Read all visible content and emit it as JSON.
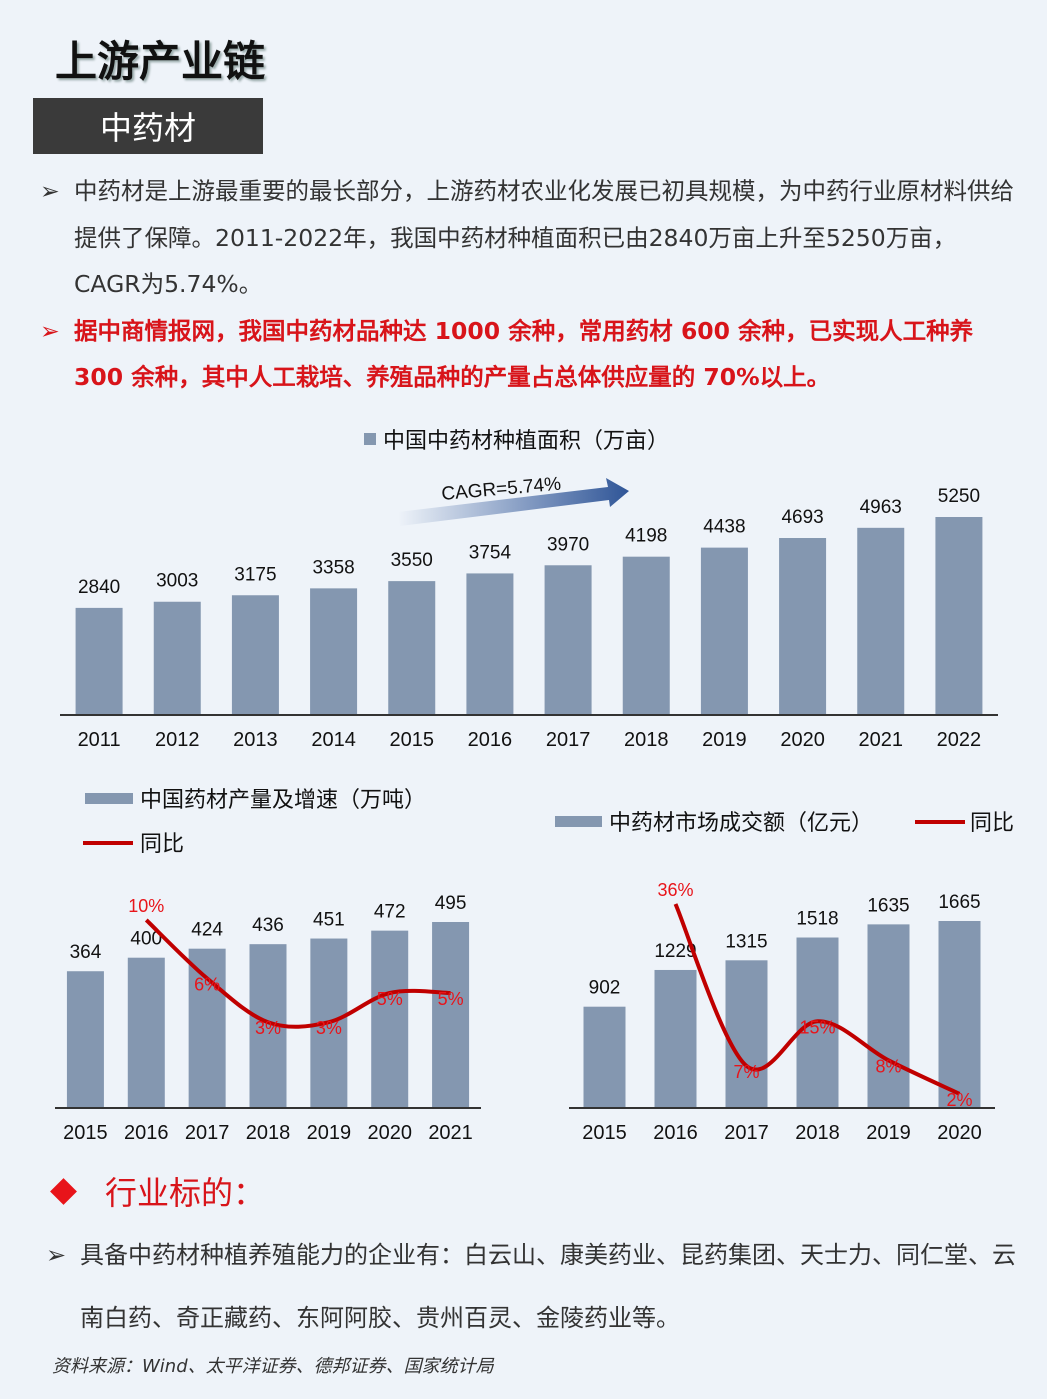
{
  "header": {
    "title": "上游产业链",
    "tag": "中药材"
  },
  "bullets": [
    {
      "text": "中药材是上游最重要的最长部分，上游药材农业化发展已初具规模，为中药行业原材料供给提供了保障。2011-2022年，我国中药材种植面积已由2840万亩上升至5250万亩，CAGR为5.74%。"
    },
    {
      "text": "据中商情报网，我国中药材品种达 1000 余种，常用药材 600 余种，已实现人工种养 300 余种，其中人工栽培、养殖品种的产量占总体供应量的 70%以上。"
    }
  ],
  "bullet_mark": "➢",
  "chart_data": [
    {
      "type": "bar",
      "legend": [
        "中国中药材种植面积（万亩）"
      ],
      "categories": [
        "2011",
        "2012",
        "2013",
        "2014",
        "2015",
        "2016",
        "2017",
        "2018",
        "2019",
        "2020",
        "2021",
        "2022"
      ],
      "series": [
        {
          "name": "中国中药材种植面积（万亩）",
          "values": [
            2840,
            3003,
            3175,
            3358,
            3550,
            3754,
            3970,
            4198,
            4438,
            4693,
            4963,
            5250
          ]
        }
      ],
      "annotation": "CAGR=5.74%",
      "colors": {
        "bar": "#8497b0",
        "arrow": "#2f5597"
      }
    },
    {
      "type": "bar",
      "legend": [
        "中国药材产量及增速（万吨）",
        "同比"
      ],
      "categories": [
        "2015",
        "2016",
        "2017",
        "2018",
        "2019",
        "2020",
        "2021"
      ],
      "series": [
        {
          "name": "中国药材产量及增速（万吨）",
          "values": [
            364,
            400,
            424,
            436,
            451,
            472,
            495
          ]
        },
        {
          "name": "同比",
          "type": "line",
          "values": [
            null,
            10,
            6,
            3,
            3,
            5,
            5
          ],
          "labels": [
            "",
            "10%",
            "6%",
            "3%",
            "3%",
            "5%",
            "5%"
          ]
        }
      ],
      "colors": {
        "bar": "#8497b0",
        "line": "#c00000"
      }
    },
    {
      "type": "bar",
      "legend": [
        "中药材市场成交额（亿元）",
        "同比"
      ],
      "categories": [
        "2015",
        "2016",
        "2017",
        "2018",
        "2019",
        "2020"
      ],
      "series": [
        {
          "name": "中药材市场成交额（亿元）",
          "values": [
            902,
            1229,
            1315,
            1518,
            1635,
            1665
          ]
        },
        {
          "name": "同比",
          "type": "line",
          "values": [
            null,
            36,
            7,
            15,
            8,
            2
          ],
          "labels": [
            "",
            "36%",
            "7%",
            "15%",
            "8%",
            "2%"
          ]
        }
      ],
      "colors": {
        "bar": "#8497b0",
        "line": "#c00000"
      }
    }
  ],
  "section": {
    "title": "行业标的："
  },
  "companies": {
    "text": "具备中药材种植养殖能力的企业有：白云山、康美药业、昆药集团、天士力、同仁堂、云南白药、奇正藏药、东阿阿胶、贵州百灵、金陵药业等。"
  },
  "source": {
    "text": "资料来源：Wind、太平洋证券、德邦证券、国家统计局"
  }
}
